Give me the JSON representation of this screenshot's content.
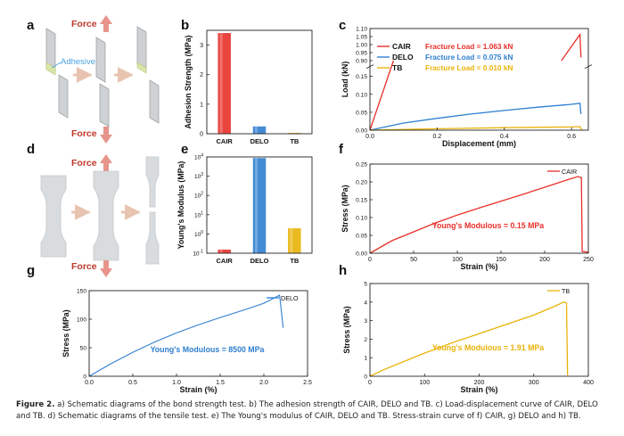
{
  "panel_labels": [
    "a",
    "b",
    "c",
    "d",
    "e",
    "f",
    "g",
    "h"
  ],
  "schematic": {
    "force_label": "Force",
    "adhesive_label": "Adhesive",
    "colors": {
      "force": "#c9766e",
      "arrow": "#e8c4b0",
      "plate": "#cfd2d4",
      "plate_edge": "#9ea3a6",
      "adhesive": "#d9e6a8",
      "adhesive_text": "#4aa3df"
    }
  },
  "caption": {
    "label": "Figure 2.",
    "text": "a) Schematic diagrams of the bond strength test. b) The adhesion strength of CAIR, DELO and TB. c) Load-displacement curve of CAIR, DELO and TB. d) Schematic diagrams of the tensile test. e) The Young's modulus of CAIR, DELO and TB. Stress-strain curve of f) CAIR, g) DELO and h) TB."
  },
  "colors": {
    "cair": "#e8302a",
    "delo": "#2f7fd0",
    "tb": "#e9b30a"
  },
  "chart_data": [
    {
      "id": "b",
      "type": "bar",
      "ylabel": "Adhesion Strength (MPa)",
      "categories": [
        "CAIR",
        "DELO",
        "TB"
      ],
      "values": [
        3.4,
        0.24,
        0.02
      ],
      "ylim": [
        0,
        3.5
      ],
      "yticks": [
        0,
        1,
        2,
        3
      ]
    },
    {
      "id": "c",
      "type": "line",
      "xlabel": "Displacement (mm)",
      "ylabel": "Load (kN)",
      "xlim": [
        0,
        0.65
      ],
      "ylim": [
        0,
        1.1
      ],
      "xticks": [
        0.0,
        0.2,
        0.4,
        0.6
      ],
      "yticks": [
        0.0,
        0.05,
        0.1,
        0.15,
        0.9,
        0.95,
        1.0,
        1.05,
        1.1
      ],
      "axis_break": [
        0.17,
        0.88
      ],
      "legend": [
        {
          "name": "CAIR",
          "annotation": "Fracture Load = 1.063 kN"
        },
        {
          "name": "DELO",
          "annotation": "Fracture Load = 0.075 kN"
        },
        {
          "name": "TB",
          "annotation": "Fracture Load = 0.010 kN"
        }
      ],
      "series": [
        {
          "name": "CAIR",
          "x": [
            0.0,
            0.07
          ],
          "y": [
            0.0,
            0.9
          ]
        },
        {
          "name": "CAIR",
          "x": [
            0.57,
            0.625,
            0.628
          ],
          "y": [
            0.9,
            1.063,
            0.92
          ]
        },
        {
          "name": "DELO",
          "x": [
            0.0,
            0.1,
            0.2,
            0.3,
            0.4,
            0.5,
            0.6,
            0.625,
            0.628
          ],
          "y": [
            0.0,
            0.02,
            0.033,
            0.045,
            0.055,
            0.064,
            0.072,
            0.075,
            0.045
          ]
        },
        {
          "name": "TB",
          "x": [
            0.0,
            0.2,
            0.4,
            0.6,
            0.625,
            0.63
          ],
          "y": [
            0.0,
            0.004,
            0.007,
            0.009,
            0.01,
            0.001
          ]
        }
      ]
    },
    {
      "id": "e",
      "type": "bar",
      "yscale": "log",
      "ylabel": "Young's Modulus (MPa)",
      "categories": [
        "CAIR",
        "DELO",
        "TB"
      ],
      "values": [
        0.15,
        8500,
        1.91
      ],
      "ylim_exp": [
        -1,
        4
      ],
      "yticks_exp": [
        -1,
        0,
        1,
        2,
        3,
        4
      ]
    },
    {
      "id": "f",
      "type": "line",
      "xlabel": "Strain (%)",
      "ylabel": "Stress (MPa)",
      "xlim": [
        0,
        250
      ],
      "ylim": [
        0,
        0.25
      ],
      "xticks": [
        0,
        50,
        100,
        150,
        200,
        250
      ],
      "yticks": [
        0.0,
        0.05,
        0.1,
        0.15,
        0.2,
        0.25
      ],
      "legend": [
        "CAIR"
      ],
      "annotation": "Young's Modulous = 0.15 MPa",
      "series": [
        {
          "name": "CAIR",
          "x": [
            0,
            25,
            50,
            75,
            100,
            125,
            150,
            175,
            200,
            225,
            238,
            242,
            243,
            250
          ],
          "y": [
            0.0,
            0.035,
            0.06,
            0.085,
            0.107,
            0.127,
            0.146,
            0.165,
            0.185,
            0.205,
            0.215,
            0.212,
            0.005,
            0.003
          ]
        }
      ]
    },
    {
      "id": "g",
      "type": "line",
      "xlabel": "Strain (%)",
      "ylabel": "Stress (MPa)",
      "xlim": [
        0,
        2.5
      ],
      "ylim": [
        0,
        150
      ],
      "xticks": [
        0.0,
        0.5,
        1.0,
        1.5,
        2.0,
        2.5
      ],
      "yticks": [
        0,
        50,
        100,
        150
      ],
      "legend": [
        "DELO"
      ],
      "annotation": "Young's Modulous = 8500 MPa",
      "series": [
        {
          "name": "DELO",
          "x": [
            0,
            0.25,
            0.5,
            0.75,
            1.0,
            1.25,
            1.5,
            1.75,
            2.0,
            2.18,
            2.2,
            2.22
          ],
          "y": [
            0,
            22,
            42,
            60,
            76,
            90,
            103,
            115,
            128,
            142,
            115,
            85
          ]
        }
      ]
    },
    {
      "id": "h",
      "type": "line",
      "xlabel": "Strain (%)",
      "ylabel": "Stress (MPa)",
      "xlim": [
        0,
        400
      ],
      "ylim": [
        0,
        5
      ],
      "xticks": [
        0,
        100,
        200,
        300,
        400
      ],
      "yticks": [
        0,
        1,
        2,
        3,
        4,
        5
      ],
      "legend": [
        "TB"
      ],
      "annotation": "Young's Modulous = 1.91 MPa",
      "series": [
        {
          "name": "TB",
          "x": [
            0,
            25,
            50,
            100,
            150,
            200,
            250,
            300,
            340,
            355,
            360,
            362
          ],
          "y": [
            0,
            0.35,
            0.65,
            1.25,
            1.8,
            2.3,
            2.8,
            3.3,
            3.8,
            4.0,
            3.95,
            0.05
          ]
        }
      ]
    }
  ]
}
